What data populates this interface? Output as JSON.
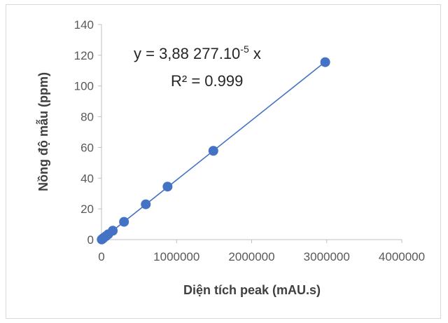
{
  "chart_data": {
    "type": "scatter",
    "title": "",
    "xlabel": "Diện tích peak (mAU.s)",
    "ylabel": "Nồng độ mẫu (ppm)",
    "xlim": [
      0,
      4000000
    ],
    "ylim": [
      0,
      140
    ],
    "x_ticks": [
      0,
      1000000,
      2000000,
      3000000,
      4000000
    ],
    "x_tick_labels": [
      "0",
      "1000000",
      "2000000",
      "3000000",
      "4000000"
    ],
    "y_ticks": [
      0,
      20,
      40,
      60,
      80,
      100,
      120,
      140
    ],
    "y_tick_labels": [
      "0",
      "20",
      "40",
      "60",
      "80",
      "100",
      "120",
      "140"
    ],
    "grid": false,
    "legend": "none",
    "series": [
      {
        "x": [
          3000,
          15000,
          30000,
          60000,
          90000,
          150000,
          300000,
          590000,
          880000,
          1490000,
          2980000
        ],
        "y": [
          0.1,
          0.6,
          1.2,
          2.3,
          3.5,
          5.8,
          11.6,
          23,
          34.5,
          57.8,
          115.5
        ]
      }
    ],
    "trendline": {
      "type": "linear",
      "slope": 3.88277e-05,
      "intercept": 0,
      "x_range": [
        0,
        2980000
      ]
    },
    "annotations": {
      "equation_main": "y = 3,88 277.10",
      "equation_sup": "-5",
      "equation_tail": " x",
      "r_squared": "R² = 0.999"
    },
    "colors": {
      "marker": "#4472c4",
      "line": "#4472c4",
      "axis": "#bfbfbf",
      "text": "#595959"
    }
  }
}
